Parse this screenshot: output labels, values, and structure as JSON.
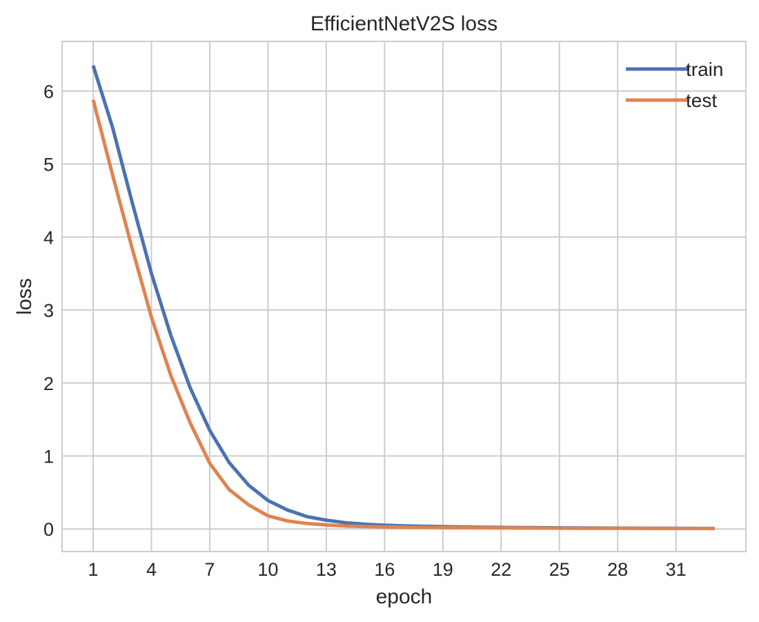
{
  "chart_data": {
    "type": "line",
    "title": "EfficientNetV2S loss",
    "xlabel": "epoch",
    "ylabel": "loss",
    "xlim": [
      -0.6,
      34.6
    ],
    "ylim": [
      -0.31,
      6.68
    ],
    "x_ticks": [
      1,
      4,
      7,
      10,
      13,
      16,
      19,
      22,
      25,
      28,
      31
    ],
    "y_ticks": [
      0,
      1,
      2,
      3,
      4,
      5,
      6
    ],
    "grid": true,
    "legend_position": "top-right",
    "x": [
      1,
      2,
      3,
      4,
      5,
      6,
      7,
      8,
      9,
      10,
      11,
      12,
      13,
      14,
      15,
      16,
      17,
      18,
      19,
      20,
      21,
      22,
      23,
      24,
      25,
      26,
      27,
      28,
      29,
      30,
      31,
      32,
      33
    ],
    "series": [
      {
        "name": "train",
        "color": "#4c72b0",
        "values": [
          6.35,
          5.5,
          4.48,
          3.5,
          2.65,
          1.93,
          1.35,
          0.91,
          0.6,
          0.39,
          0.26,
          0.17,
          0.12,
          0.085,
          0.065,
          0.052,
          0.043,
          0.036,
          0.031,
          0.027,
          0.024,
          0.021,
          0.019,
          0.017,
          0.015,
          0.014,
          0.013,
          0.012,
          0.011,
          0.01,
          0.009,
          0.008,
          0.007
        ]
      },
      {
        "name": "test",
        "color": "#dd8452",
        "values": [
          5.88,
          4.85,
          3.85,
          2.9,
          2.1,
          1.45,
          0.9,
          0.54,
          0.33,
          0.18,
          0.11,
          0.075,
          0.055,
          0.04,
          0.033,
          0.028,
          0.024,
          0.021,
          0.019,
          0.017,
          0.015,
          0.014,
          0.013,
          0.012,
          0.011,
          0.01,
          0.009,
          0.009,
          0.008,
          0.008,
          0.007,
          0.007,
          0.006
        ]
      }
    ]
  }
}
